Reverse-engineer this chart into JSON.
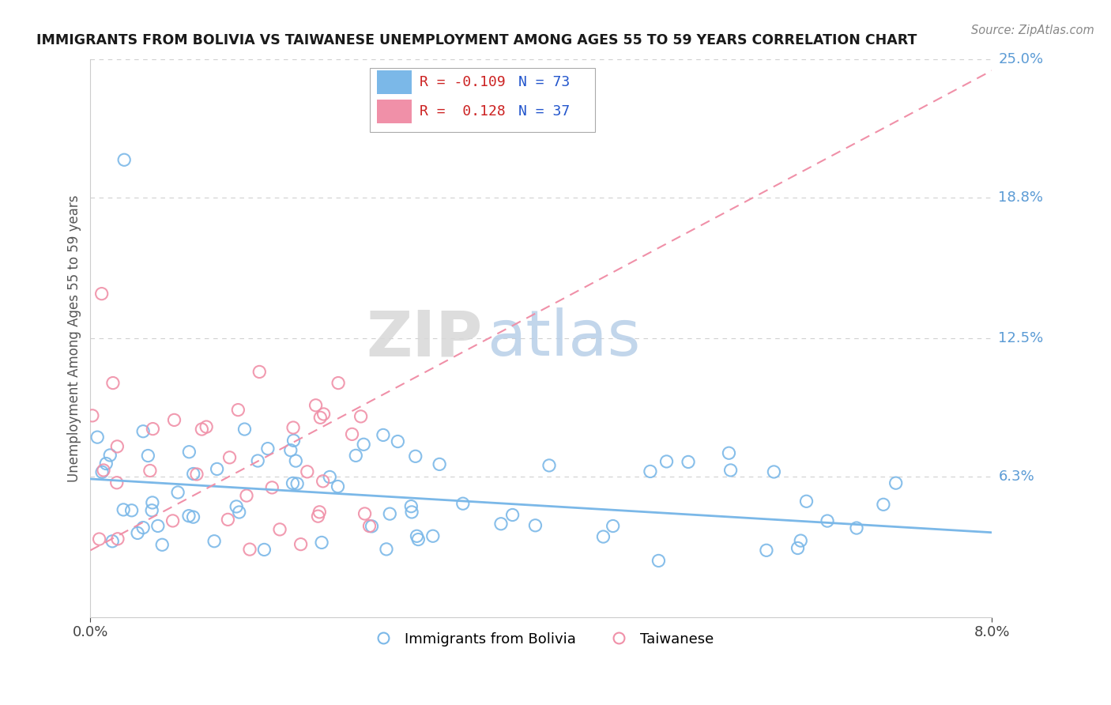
{
  "title": "IMMIGRANTS FROM BOLIVIA VS TAIWANESE UNEMPLOYMENT AMONG AGES 55 TO 59 YEARS CORRELATION CHART",
  "source": "Source: ZipAtlas.com",
  "ylabel": "Unemployment Among Ages 55 to 59 years",
  "xlim": [
    0.0,
    0.08
  ],
  "ylim": [
    0.0,
    0.25
  ],
  "xtick_labels": [
    "0.0%",
    "8.0%"
  ],
  "ytick_right": [
    [
      0.25,
      "25.0%"
    ],
    [
      0.188,
      "18.8%"
    ],
    [
      0.125,
      "12.5%"
    ],
    [
      0.063,
      "6.3%"
    ]
  ],
  "color_blue": "#7bb8e8",
  "color_pink": "#f090a8",
  "blue_trend_x": [
    0.0,
    0.08
  ],
  "blue_trend_y": [
    0.062,
    0.038
  ],
  "pink_trend_x": [
    0.0,
    0.08
  ],
  "pink_trend_y": [
    0.03,
    0.245
  ],
  "legend_items": [
    {
      "color": "#7bb8e8",
      "r": "R = -0.109",
      "n": "N = 73"
    },
    {
      "color": "#f090a8",
      "r": "R =  0.128",
      "n": "N = 37"
    }
  ],
  "watermark_zip": "ZIP",
  "watermark_atlas": "atlas",
  "bottom_legend": [
    "Immigrants from Bolivia",
    "Taiwanese"
  ]
}
